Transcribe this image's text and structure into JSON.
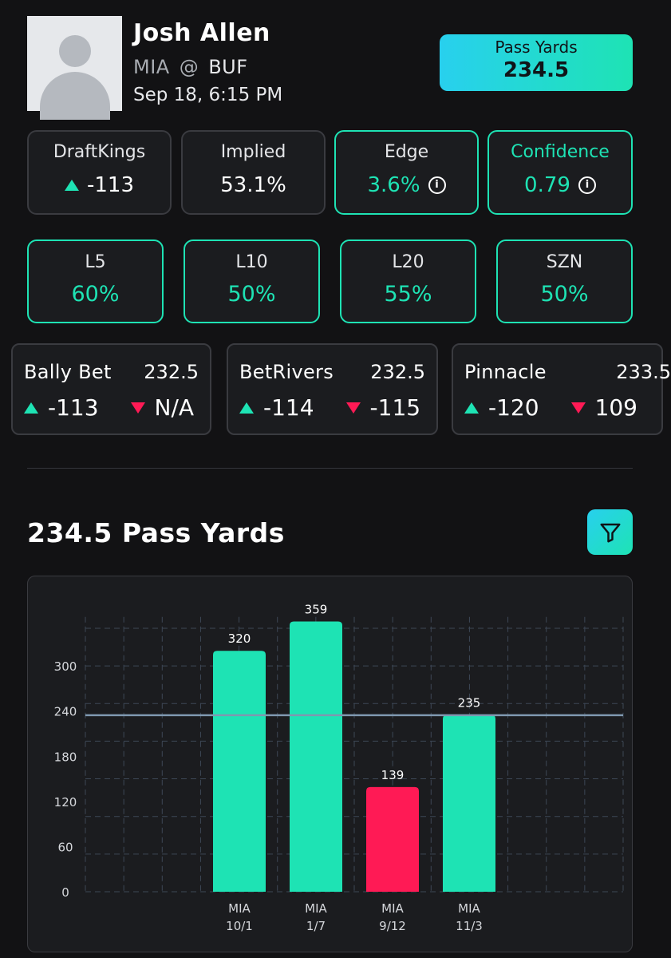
{
  "player": {
    "name": "Josh Allen",
    "away_team": "MIA",
    "at_symbol": "@",
    "home_team": "BUF",
    "game_time": "Sep 18, 6:15 PM"
  },
  "prop": {
    "label": "Pass Yards",
    "line": "234.5"
  },
  "stats": {
    "book_label": "DraftKings",
    "book_odds": "-113",
    "implied_label": "Implied",
    "implied_value": "53.1%",
    "edge_label": "Edge",
    "edge_value": "3.6%",
    "confidence_label": "Confidence",
    "confidence_value": "0.79"
  },
  "hit_rates": [
    {
      "label": "L5",
      "value": "60%"
    },
    {
      "label": "L10",
      "value": "50%"
    },
    {
      "label": "L20",
      "value": "55%"
    },
    {
      "label": "SZN",
      "value": "50%"
    }
  ],
  "books": [
    {
      "name": "Bally Bet",
      "line": "232.5",
      "over": "-113",
      "under": "N/A"
    },
    {
      "name": "BetRivers",
      "line": "232.5",
      "over": "-114",
      "under": "-115"
    },
    {
      "name": "Pinnacle",
      "line": "233.5",
      "over": "-120",
      "under": "109"
    }
  ],
  "chart_heading": "234.5 Pass Yards",
  "colors": {
    "accent": "#1ee3b4",
    "accent_cyan": "#28d0ee",
    "miss": "#ff1a55",
    "background": "#121214",
    "card": "#1b1c1f"
  },
  "icons": {
    "filter": "filter-icon",
    "info": "info-icon",
    "up": "triangle-up-icon",
    "down": "triangle-down-icon"
  },
  "chart_data": {
    "type": "bar",
    "categories": [
      {
        "team": "MIA",
        "date": "10/1"
      },
      {
        "team": "MIA",
        "date": "1/7"
      },
      {
        "team": "MIA",
        "date": "9/12"
      },
      {
        "team": "MIA",
        "date": "11/3"
      }
    ],
    "values": [
      320,
      359,
      139,
      235
    ],
    "bar_status": [
      "hit",
      "hit",
      "miss",
      "hit"
    ],
    "y_ticks": [
      0,
      60,
      120,
      180,
      240,
      300
    ],
    "ylim": [
      0,
      360
    ],
    "reference_line": 234.5,
    "grid": true
  }
}
